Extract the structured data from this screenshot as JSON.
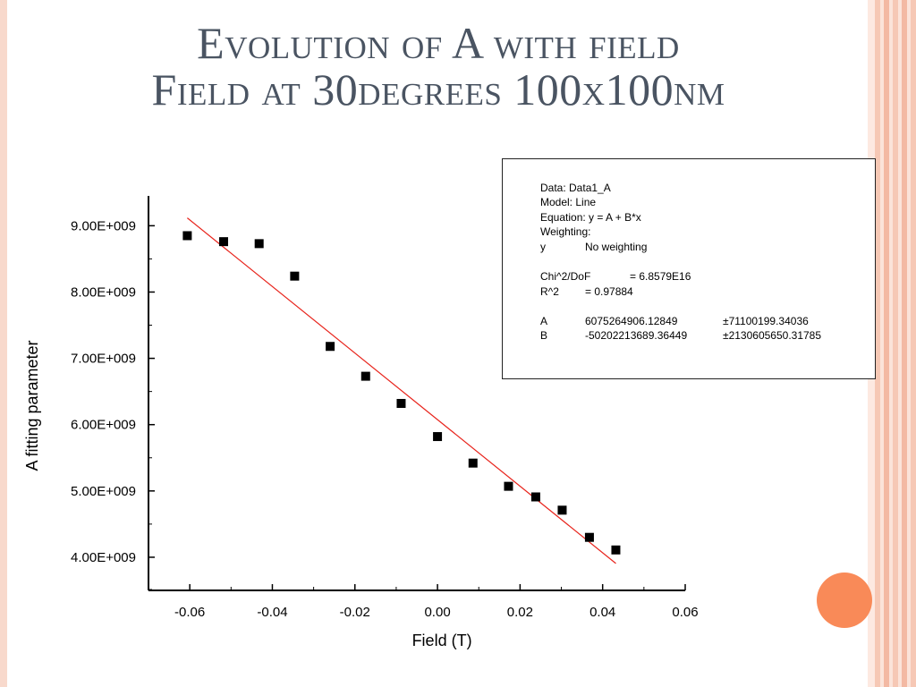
{
  "slide": {
    "title_line1": "Evolution of A with field",
    "title_line2": "Field at 30degrees 100x100nm",
    "accent_color": "#f98a58"
  },
  "fit_box": {
    "data_line": "Data: Data1_A",
    "model_line": "Model: Line",
    "equation_line": "Equation: y = A + B*x",
    "weighting_line": "Weighting:",
    "weighting_var": "y",
    "weighting_value": "No weighting",
    "chi_label": "Chi^2/DoF",
    "chi_value": "= 6.8579E16",
    "r2_label": "R^2",
    "r2_value": "=  0.97884",
    "params": [
      {
        "name": "A",
        "value": "6075264906.12849",
        "error": "±71100199.34036"
      },
      {
        "name": "B",
        "value": "-50202213689.36449",
        "error": "±2130605650.31785"
      }
    ]
  },
  "chart_data": {
    "type": "scatter",
    "xlabel": "Field (T)",
    "ylabel": "A fitting parameter",
    "xlim": [
      -0.07,
      0.06
    ],
    "ylim": [
      3500000000.0,
      9450000000.0
    ],
    "x_ticks": [
      -0.06,
      -0.04,
      -0.02,
      0.0,
      0.02,
      0.04,
      0.06
    ],
    "x_tick_labels": [
      "-0.06",
      "-0.04",
      "-0.02",
      "0.00",
      "0.02",
      "0.04",
      "0.06"
    ],
    "y_ticks": [
      4000000000.0,
      5000000000.0,
      6000000000.0,
      7000000000.0,
      8000000000.0,
      9000000000.0
    ],
    "y_tick_labels": [
      "4.00E+009",
      "5.00E+009",
      "6.00E+009",
      "7.00E+009",
      "8.00E+009",
      "9.00E+009"
    ],
    "grid": false,
    "series": [
      {
        "marker": "square",
        "color": "#000000",
        "points": [
          [
            -0.0606,
            8850000000.0
          ],
          [
            -0.0518,
            8760000000.0
          ],
          [
            -0.0432,
            8730000000.0
          ],
          [
            -0.0346,
            8240000000.0
          ],
          [
            -0.026,
            7180000000.0
          ],
          [
            -0.0174,
            6730000000.0
          ],
          [
            -0.0088,
            6320000000.0
          ],
          [
            0.0,
            5820000000.0
          ],
          [
            0.0086,
            5420000000.0
          ],
          [
            0.0172,
            5070000000.0
          ],
          [
            0.0238,
            4910000000.0
          ],
          [
            0.0302,
            4710000000.0
          ],
          [
            0.0368,
            4300000000.0
          ],
          [
            0.0432,
            4110000000.0
          ]
        ]
      }
    ],
    "fit_line": {
      "intercept": 6075264906.12849,
      "slope": -50202213689.36449,
      "x_range": [
        -0.0606,
        0.0432
      ],
      "color": "#e8241c"
    }
  }
}
